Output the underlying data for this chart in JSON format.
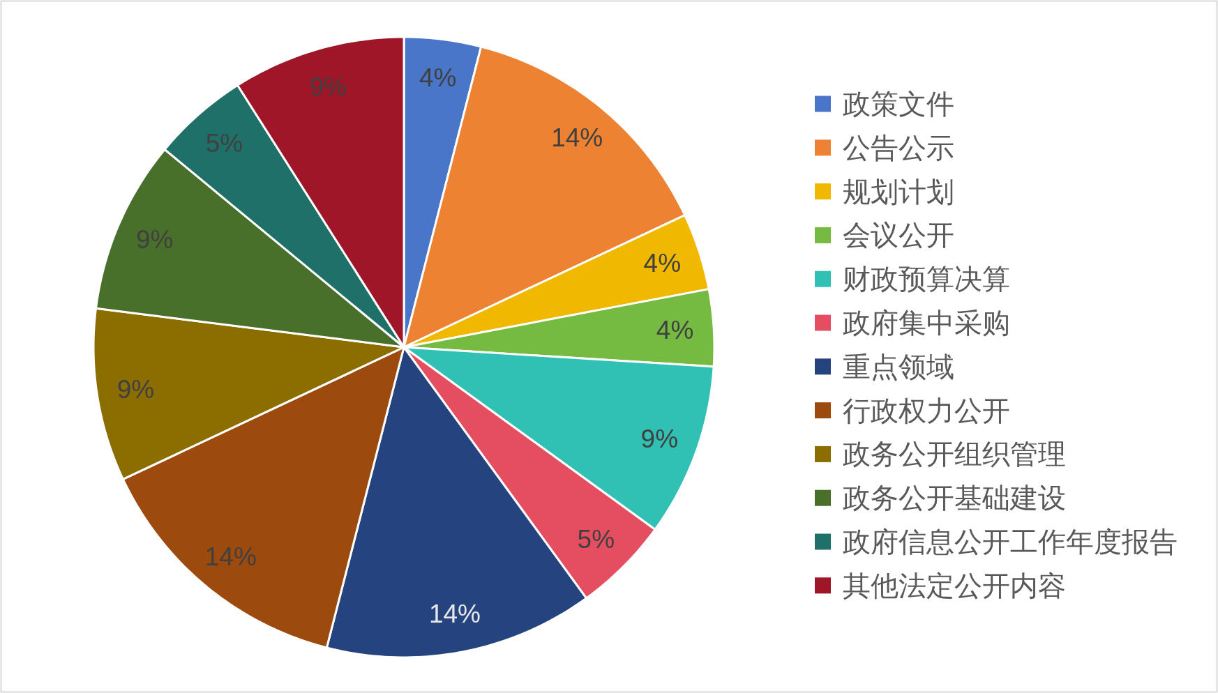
{
  "chart_data": {
    "type": "pie",
    "categories": [
      "政策文件",
      "公告公示",
      "规划计划",
      "会议公开",
      "财政预算决算",
      "政府集中采购",
      "重点领域",
      "行政权力公开",
      "政务公开组织管理",
      "政务公开基础建设",
      "政府信息公开工作年度报告",
      "其他法定公开内容"
    ],
    "values": [
      4,
      14,
      4,
      4,
      9,
      5,
      14,
      14,
      9,
      9,
      5,
      9
    ],
    "value_labels": [
      "4%",
      "14%",
      "4%",
      "4%",
      "9%",
      "5%",
      "14%",
      "14%",
      "9%",
      "9%",
      "5%",
      "9%"
    ],
    "colors": [
      "#4a76c9",
      "#ed8232",
      "#f1b800",
      "#75bb42",
      "#30c0b4",
      "#e44e60",
      "#25437f",
      "#9d4a0e",
      "#8b6d00",
      "#48702a",
      "#1e7068",
      "#9e1628"
    ],
    "legend": "right"
  }
}
